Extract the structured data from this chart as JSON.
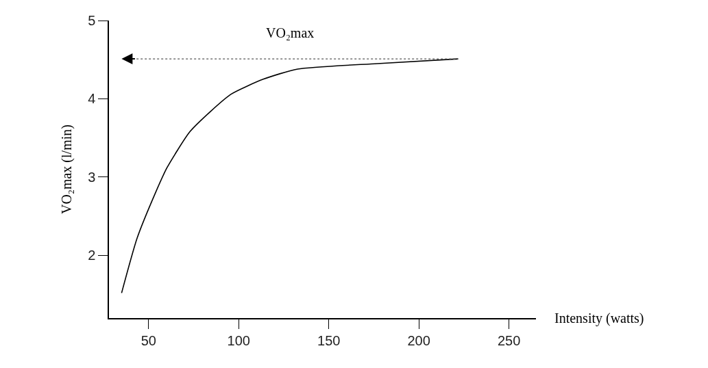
{
  "chart_data": {
    "type": "line",
    "x": [
      35,
      43.6,
      53.8,
      60.2,
      72.9,
      84.4,
      95.8,
      113.6,
      132.7,
      177,
      221.8
    ],
    "series": [
      {
        "color": "#000000",
        "values": [
          1.52,
          2.22,
          2.8,
          3.12,
          3.58,
          3.84,
          4.06,
          4.25,
          4.38,
          4.45,
          4.51
        ]
      }
    ],
    "xlabel": "Intensity (watts)",
    "ylabel": "VO₂max (l/min)",
    "xlim": [
      28,
      265
    ],
    "xticks": [
      50,
      100,
      150,
      200,
      250
    ],
    "ylim": [
      1.2,
      5
    ],
    "yticks": [
      2,
      3,
      4,
      5
    ],
    "ref_lines": [
      {
        "axis": "y",
        "value": 4.51,
        "label": "VO₂max",
        "line_style": "dotted",
        "color": "#555555"
      }
    ],
    "marker": "none",
    "line_style": "solid"
  }
}
